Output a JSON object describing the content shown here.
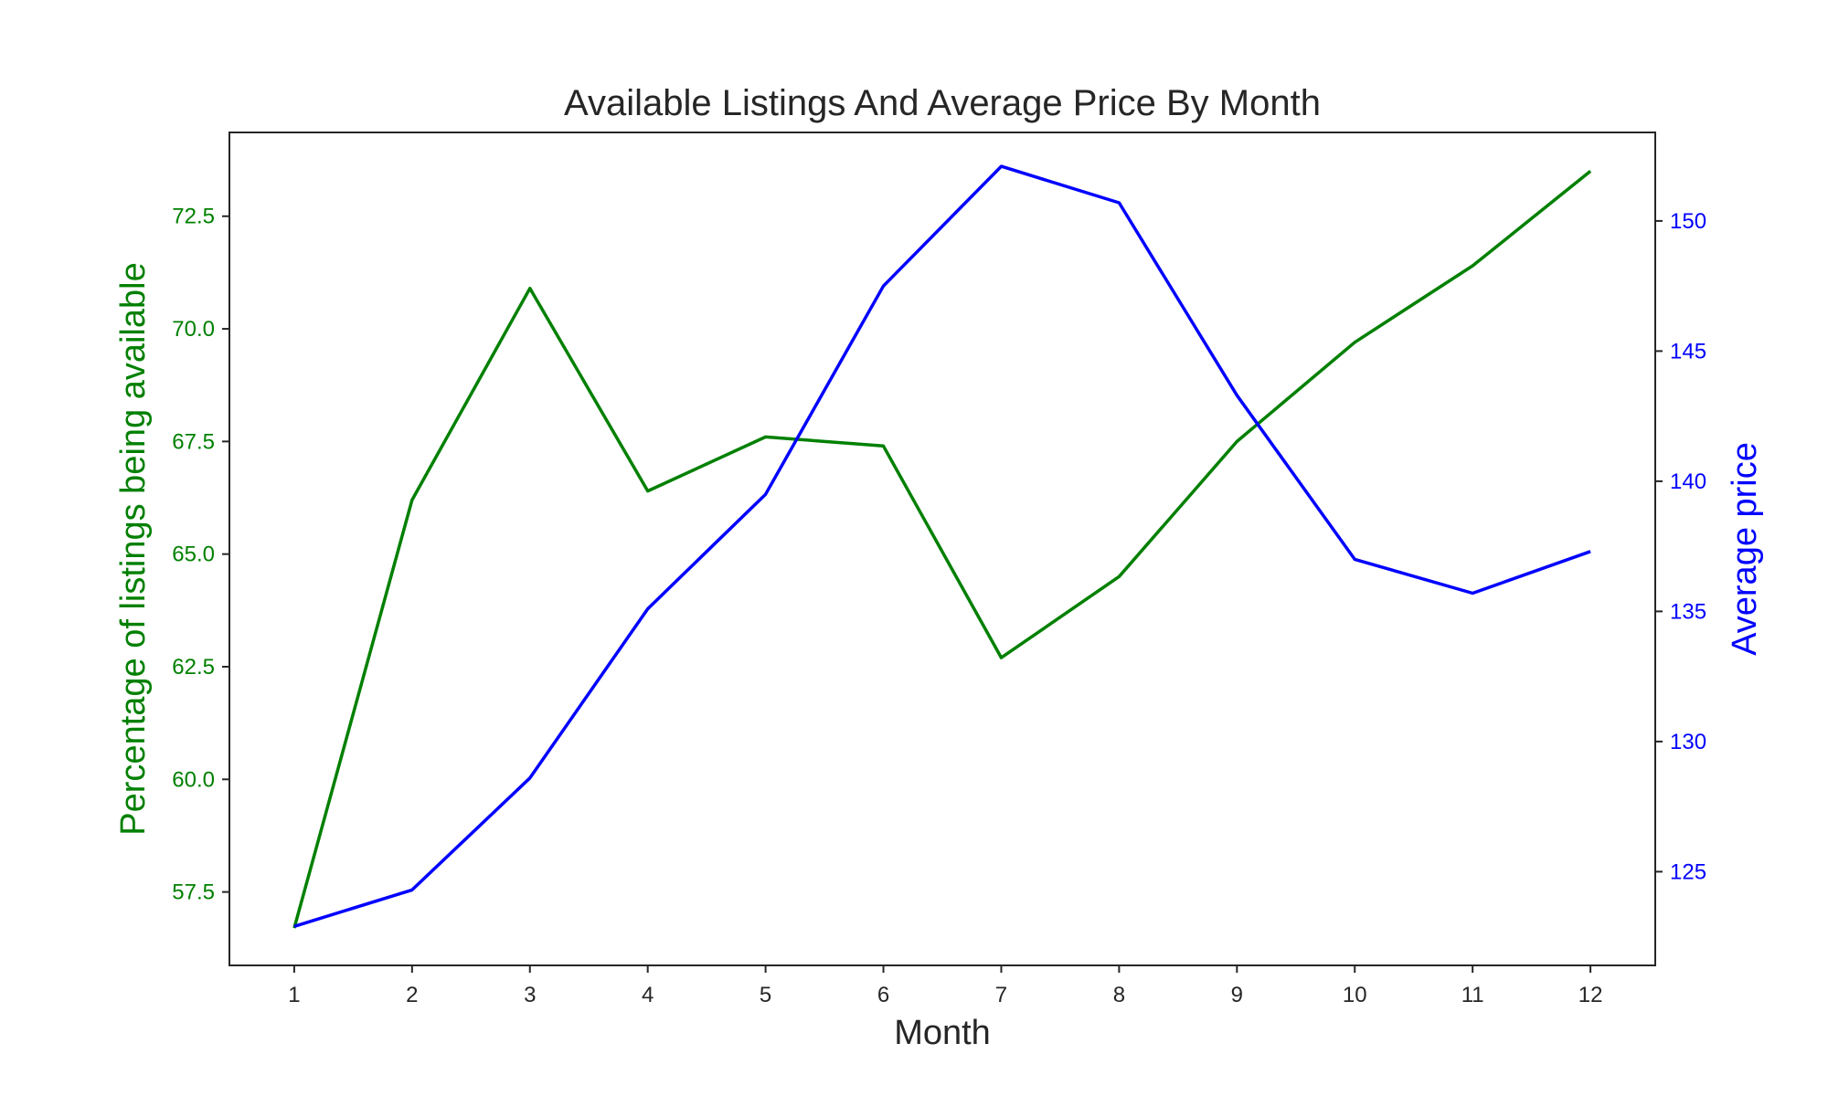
{
  "chart_data": {
    "type": "line",
    "title": "Available Listings And Average Price By Month",
    "xlabel": "Month",
    "ylabel_left": "Percentage of listings being available",
    "ylabel_right": "Average price",
    "categories": [
      "1",
      "2",
      "3",
      "4",
      "5",
      "6",
      "7",
      "8",
      "9",
      "10",
      "11",
      "12"
    ],
    "x": [
      1,
      2,
      3,
      4,
      5,
      6,
      7,
      8,
      9,
      10,
      11,
      12
    ],
    "xlim": [
      0.45,
      12.55
    ],
    "series": [
      {
        "axis": "left",
        "color": "#008000",
        "values": [
          56.7,
          66.2,
          70.9,
          66.4,
          67.6,
          67.4,
          62.7,
          64.5,
          67.5,
          69.7,
          71.4,
          73.5
        ]
      },
      {
        "axis": "right",
        "color": "#0000ff",
        "values": [
          122.9,
          124.3,
          128.6,
          135.1,
          139.5,
          147.5,
          152.1,
          150.7,
          143.3,
          137.0,
          135.7,
          137.3
        ]
      }
    ],
    "y_left": {
      "lim": [
        55.87,
        74.36
      ],
      "ticks": [
        57.5,
        60.0,
        62.5,
        65.0,
        67.5,
        70.0,
        72.5
      ],
      "color": "#008000"
    },
    "y_right": {
      "lim": [
        121.4,
        153.4
      ],
      "ticks": [
        125,
        130,
        135,
        140,
        145,
        150
      ],
      "color": "#0000ff"
    },
    "grid": false
  }
}
